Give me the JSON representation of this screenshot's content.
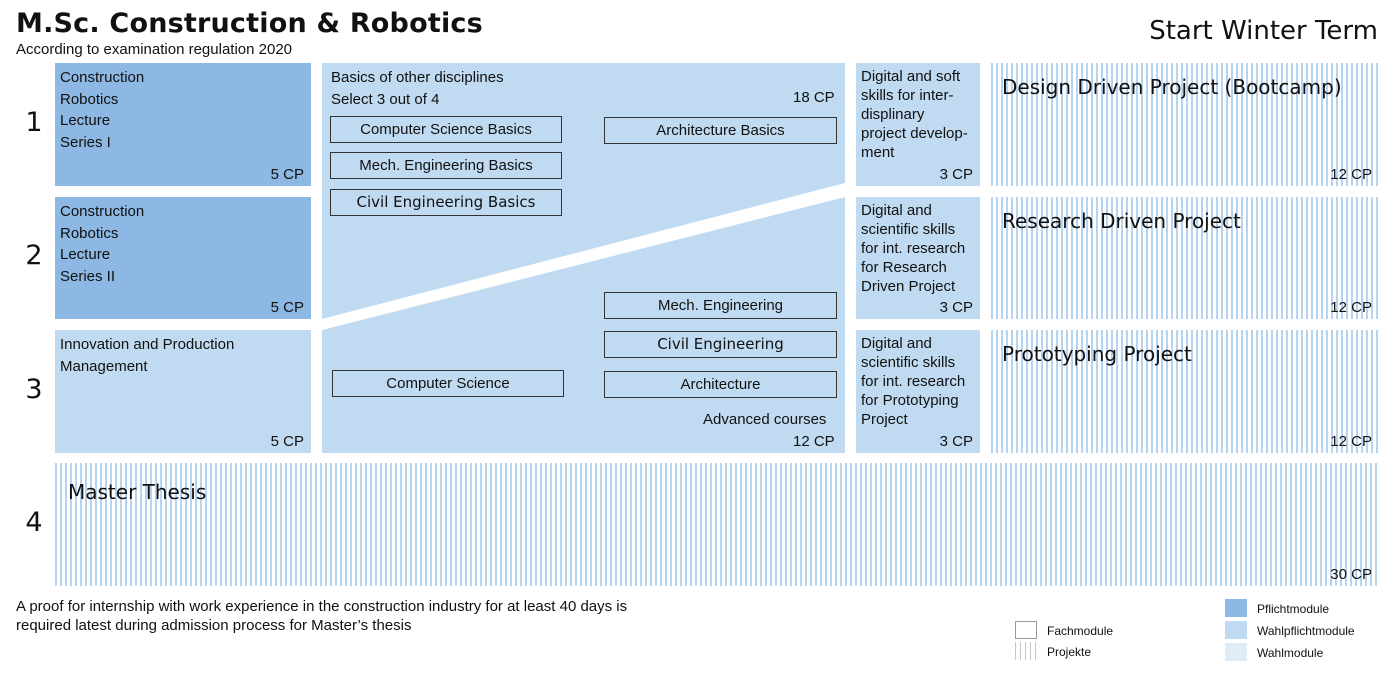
{
  "header": {
    "title": "M.Sc. Construction & Robotics",
    "subtitle": "According to examination regulation 2020",
    "start": "Start Winter Term"
  },
  "semesters": [
    "1",
    "2",
    "3",
    "4"
  ],
  "lecture1": {
    "lines": [
      "Construction",
      "Robotics",
      "Lecture",
      "Series I"
    ],
    "cp": "5 CP"
  },
  "lecture2": {
    "lines": [
      "Construction",
      "Robotics",
      "Lecture",
      "Series II"
    ],
    "cp": "5 CP"
  },
  "innovation": {
    "lines": [
      "Innovation and Production",
      "Management"
    ],
    "cp": "5 CP"
  },
  "basics": {
    "line1": "Basics of other disciplines",
    "line2": "Select 3 out of 4",
    "cp": "18 CP",
    "courses": [
      "Computer Science Basics",
      "Architecture Basics",
      "Mech. Engineering Basics",
      "Civil Engineering Basics"
    ]
  },
  "advanced": {
    "courses": [
      "Mech. Engineering",
      "Civil Engineering",
      "Computer Science",
      "Architecture"
    ],
    "label": "Advanced courses",
    "cp": "12 CP"
  },
  "skills": [
    {
      "lines": [
        "Digital and soft",
        "skills for inter-",
        "displinary",
        "project develop-",
        "ment"
      ],
      "cp": "3 CP"
    },
    {
      "lines": [
        "Digital and",
        "scientific skills",
        "for int. research",
        "for Research",
        "Driven Project"
      ],
      "cp": "3 CP"
    },
    {
      "lines": [
        "Digital and",
        "scientific skills",
        "for int. research",
        "for Prototyping",
        "Project"
      ],
      "cp": "3 CP"
    }
  ],
  "projects": [
    {
      "title": "Design Driven Project (Bootcamp)",
      "cp": "12 CP"
    },
    {
      "title": "Research Driven Project",
      "cp": "12 CP"
    },
    {
      "title": "Prototyping Project",
      "cp": "12 CP"
    }
  ],
  "thesis": {
    "title": "Master Thesis",
    "cp": "30 CP"
  },
  "note": {
    "line1": "A proof for internship with work experience in the construction industry for at least 40 days is",
    "line2": "required latest during admission process for Master’s thesis"
  },
  "legend": {
    "fachmodule": "Fachmodule",
    "projekte": "Projekte",
    "pflichtmodule": "Pflichtmodule",
    "wahlpflichtmodule": "Wahlpflichtmodule",
    "wahlmodule": "Wahlmodule"
  },
  "colors": {
    "pflicht": "#8db8e3",
    "wahlpflicht": "#c0dbf1",
    "wahl": "#dfedf9",
    "projekt_stripe": "#b6d3ef"
  }
}
